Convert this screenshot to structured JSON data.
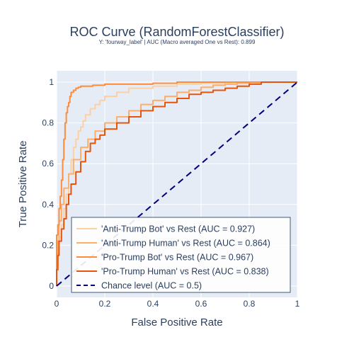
{
  "chart_data": {
    "type": "line",
    "title": "ROC Curve (RandomForestClassifier)",
    "subtitle": "Y: 'fourway_label' | AUC (Macro averaged One vs Rest): 0.899",
    "xlabel": "False Positive Rate",
    "ylabel": "True Positive Rate",
    "xlim": [
      0,
      1
    ],
    "ylim": [
      0,
      1
    ],
    "x_ticks": [
      "0",
      "0.2",
      "0.4",
      "0.6",
      "0.8",
      "1"
    ],
    "y_ticks": [
      "0",
      "0.2",
      "0.4",
      "0.6",
      "0.8",
      "1"
    ],
    "grid": true,
    "legend_position": "bottom-right",
    "series": [
      {
        "name": "'Anti-Trump Bot' vs Rest (AUC = 0.927)",
        "color": "#fdd0a2",
        "dash": "solid",
        "x": [
          0,
          0.005,
          0.01,
          0.02,
          0.03,
          0.04,
          0.05,
          0.06,
          0.07,
          0.08,
          0.09,
          0.1,
          0.11,
          0.12,
          0.14,
          0.16,
          0.18,
          0.2,
          0.25,
          0.3,
          0.4,
          0.5,
          0.6,
          0.7,
          0.8,
          0.85,
          0.9,
          0.95,
          1.0
        ],
        "y": [
          0,
          0.1,
          0.2,
          0.24,
          0.3,
          0.38,
          0.45,
          0.55,
          0.62,
          0.68,
          0.72,
          0.76,
          0.78,
          0.81,
          0.84,
          0.87,
          0.89,
          0.91,
          0.93,
          0.95,
          0.97,
          0.98,
          0.99,
          0.995,
          1.0,
          1.0,
          1.0,
          1.0,
          1.0
        ]
      },
      {
        "name": "'Anti-Trump Human' vs Rest (AUC = 0.864)",
        "color": "#fdae6b",
        "dash": "solid",
        "x": [
          0,
          0.005,
          0.01,
          0.02,
          0.03,
          0.05,
          0.07,
          0.1,
          0.13,
          0.16,
          0.2,
          0.25,
          0.3,
          0.35,
          0.4,
          0.45,
          0.5,
          0.55,
          0.6,
          0.65,
          0.7,
          0.75,
          0.8,
          0.85,
          0.9,
          1.0
        ],
        "y": [
          0,
          0.1,
          0.22,
          0.32,
          0.4,
          0.48,
          0.55,
          0.62,
          0.68,
          0.72,
          0.76,
          0.8,
          0.83,
          0.86,
          0.89,
          0.91,
          0.93,
          0.95,
          0.96,
          0.975,
          0.985,
          0.99,
          0.995,
          1.0,
          1.0,
          1.0
        ]
      },
      {
        "name": "'Pro-Trump Bot' vs Rest (AUC = 0.967)",
        "color": "#fd8d3c",
        "dash": "solid",
        "x": [
          0,
          0.005,
          0.01,
          0.015,
          0.02,
          0.025,
          0.03,
          0.035,
          0.04,
          0.045,
          0.05,
          0.055,
          0.06,
          0.07,
          0.08,
          0.09,
          0.1,
          0.12,
          0.15,
          0.2,
          0.3,
          0.4,
          0.5,
          0.6,
          0.7,
          0.8,
          0.9,
          1.0
        ],
        "y": [
          0,
          0.25,
          0.3,
          0.38,
          0.44,
          0.52,
          0.62,
          0.72,
          0.8,
          0.85,
          0.88,
          0.9,
          0.93,
          0.95,
          0.96,
          0.97,
          0.975,
          0.98,
          0.98,
          0.985,
          0.99,
          0.99,
          0.995,
          1.0,
          1.0,
          1.0,
          1.0,
          1.0
        ]
      },
      {
        "name": "'Pro-Trump Human' vs Rest (AUC = 0.838)",
        "color": "#e6550d",
        "dash": "solid",
        "x": [
          0,
          0.005,
          0.01,
          0.02,
          0.03,
          0.04,
          0.05,
          0.06,
          0.08,
          0.1,
          0.12,
          0.14,
          0.16,
          0.18,
          0.2,
          0.25,
          0.3,
          0.35,
          0.4,
          0.45,
          0.5,
          0.55,
          0.6,
          0.65,
          0.7,
          0.75,
          0.8,
          0.85,
          0.9,
          1.0
        ],
        "y": [
          0,
          0.08,
          0.15,
          0.22,
          0.28,
          0.33,
          0.4,
          0.45,
          0.5,
          0.56,
          0.61,
          0.66,
          0.7,
          0.72,
          0.74,
          0.77,
          0.8,
          0.83,
          0.86,
          0.88,
          0.9,
          0.92,
          0.94,
          0.95,
          0.96,
          0.97,
          0.98,
          0.99,
          1.0,
          1.0
        ]
      },
      {
        "name": "Chance level (AUC = 0.5)",
        "color": "#00007f",
        "dash": "dash",
        "x": [
          0,
          1
        ],
        "y": [
          0,
          1
        ]
      }
    ]
  }
}
